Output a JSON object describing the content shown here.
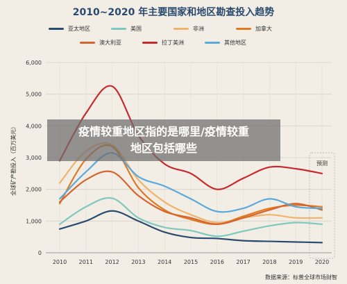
{
  "chart_data": {
    "type": "line",
    "title": "2010~2020 年主要国家和地区勘查投入趋势",
    "ylabel": "全球矿产勘投入（百万美元）",
    "xlabel": "",
    "x": [
      "2010",
      "2011",
      "2012",
      "2013",
      "2014",
      "2015",
      "2016",
      "2017",
      "2018",
      "2019",
      "2020"
    ],
    "ylim": [
      0,
      6000
    ],
    "yticks": [
      "0",
      "1,000",
      "2,000",
      "3,000",
      "4,000",
      "5,000",
      "6,000"
    ],
    "grid": true,
    "legend_position": "top",
    "forecast_label": "预测",
    "series": [
      {
        "name": "亚太地区",
        "color": "#2b4a6f",
        "values": [
          750,
          1000,
          1320,
          1000,
          650,
          480,
          450,
          380,
          360,
          340,
          320
        ]
      },
      {
        "name": "美国",
        "color": "#7fc8bf",
        "values": [
          900,
          1450,
          1720,
          1100,
          800,
          700,
          520,
          680,
          850,
          950,
          900
        ]
      },
      {
        "name": "非洲",
        "color": "#f0b36b",
        "values": [
          2200,
          3200,
          3400,
          2300,
          1600,
          1200,
          950,
          1100,
          1200,
          1100,
          1100
        ]
      },
      {
        "name": "加拿大",
        "color": "#e07a22",
        "values": [
          1550,
          2950,
          3350,
          2050,
          1350,
          1050,
          900,
          1150,
          1400,
          1500,
          1450
        ]
      },
      {
        "name": "澳大利亚",
        "color": "#d4652f",
        "values": [
          1600,
          2300,
          2550,
          1800,
          1300,
          1100,
          900,
          1100,
          1350,
          1550,
          1350
        ]
      },
      {
        "name": "拉丁美洲",
        "color": "#c9282d",
        "values": [
          2900,
          4400,
          5250,
          3700,
          2800,
          2500,
          2000,
          2350,
          2700,
          2650,
          2500
        ]
      },
      {
        "name": "其他地区",
        "color": "#5aa9dc",
        "values": [
          1700,
          2550,
          3150,
          2400,
          2100,
          1700,
          1300,
          1400,
          1700,
          1450,
          1400
        ]
      }
    ]
  },
  "overlay": {
    "line1": "疫情较重地区指的是哪里/疫情较重",
    "line2": "地区包括哪些"
  },
  "source": "数据来源：标普全球市场财智"
}
